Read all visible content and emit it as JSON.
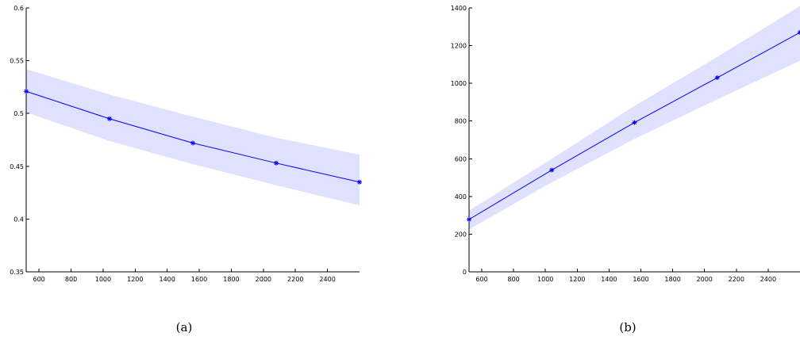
{
  "chart_data": [
    {
      "type": "line",
      "caption": "(a)",
      "x": [
        520,
        1040,
        1560,
        2080,
        2600
      ],
      "series": [
        {
          "values": [
            0.521,
            0.495,
            0.472,
            0.453,
            0.435
          ],
          "band_upper": [
            0.542,
            0.518,
            0.497,
            0.477,
            0.461
          ],
          "band_lower": [
            0.501,
            0.474,
            0.452,
            0.432,
            0.413
          ]
        }
      ],
      "xlim": [
        520,
        2600
      ],
      "ylim": [
        0.35,
        0.6
      ],
      "xticks": [
        600,
        800,
        1000,
        1200,
        1400,
        1600,
        1800,
        2000,
        2200,
        2400
      ],
      "yticks": [
        0.35,
        0.4,
        0.45,
        0.5,
        0.55,
        0.6
      ],
      "xtick_labels": [
        "600",
        "800",
        "1000",
        "1200",
        "1400",
        "1600",
        "1800",
        "2000",
        "2200",
        "2400"
      ],
      "ytick_labels": [
        "0.35",
        "0.4",
        "0.45",
        "0.5",
        "0.55",
        "0.6"
      ],
      "line_color": "#0000ff",
      "band_color": "#e0e0ff",
      "grid": false
    },
    {
      "type": "line",
      "caption": "(b)",
      "x": [
        520,
        1040,
        1560,
        2080,
        2600
      ],
      "series": [
        {
          "values": [
            278,
            540,
            792,
            1030,
            1270
          ],
          "band_upper": [
            325,
            600,
            880,
            1140,
            1410
          ],
          "band_lower": [
            225,
            475,
            705,
            915,
            1120
          ]
        }
      ],
      "xlim": [
        520,
        2600
      ],
      "ylim": [
        0,
        1400
      ],
      "xticks": [
        600,
        800,
        1000,
        1200,
        1400,
        1600,
        1800,
        2000,
        2200,
        2400
      ],
      "yticks": [
        0,
        200,
        400,
        600,
        800,
        1000,
        1200,
        1400
      ],
      "xtick_labels": [
        "600",
        "800",
        "1000",
        "1200",
        "1400",
        "1600",
        "1800",
        "2000",
        "2200",
        "2400"
      ],
      "ytick_labels": [
        "0",
        "200",
        "400",
        "600",
        "800",
        "1000",
        "1200",
        "1400"
      ],
      "line_color": "#0000ff",
      "band_color": "#e0e0ff",
      "grid": false
    }
  ]
}
